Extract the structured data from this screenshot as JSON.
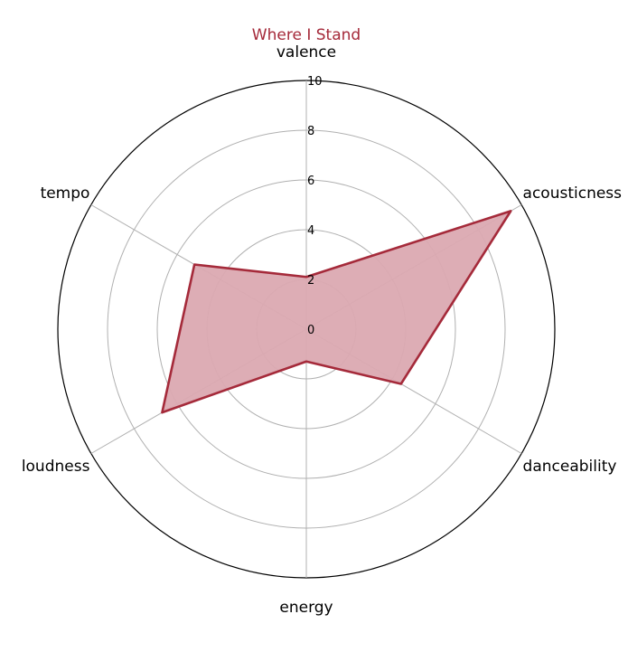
{
  "chart_data": {
    "type": "radar",
    "title": "Where I Stand",
    "axes": [
      "valence",
      "acousticness",
      "danceability",
      "energy",
      "loudness",
      "tempo"
    ],
    "series": [
      {
        "values": [
          2.1,
          9.5,
          4.4,
          1.3,
          6.7,
          5.2
        ]
      }
    ],
    "rlim": [
      0,
      10
    ],
    "rticks": [
      0,
      2,
      4,
      6,
      8,
      10
    ],
    "rtick_labels": [
      "0",
      "2",
      "4",
      "6",
      "8",
      "10"
    ],
    "grid": true,
    "colors": {
      "line": "#a52a3a",
      "fill": "#dba9b1",
      "title": "#a52a3a",
      "grid": "#b0b0b0",
      "outer": "#000000"
    }
  }
}
